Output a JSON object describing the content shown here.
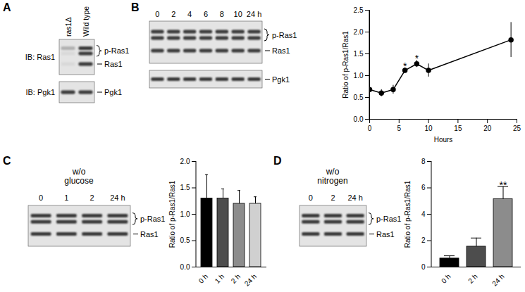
{
  "panels": [
    {
      "letter": "A",
      "blot": {
        "lanes": [
          "ras1Δ",
          "Wild type"
        ],
        "rows": [
          {
            "antibody": "IB: Ras1",
            "bands": [
              "p-Ras1",
              "Ras1"
            ]
          },
          {
            "antibody": "IB: Pgk1",
            "bands": [
              "Pgk1"
            ]
          }
        ]
      }
    },
    {
      "letter": "B",
      "blot": {
        "lanes": [
          "0",
          "2",
          "4",
          "6",
          "8",
          "10",
          "24 h"
        ],
        "rows": [
          {
            "bands": [
              "p-Ras1",
              "Ras1"
            ]
          },
          {
            "bands": [
              "Pgk1"
            ]
          }
        ]
      }
    },
    {
      "letter": "C",
      "blot": {
        "title": [
          "w/o",
          "glucose"
        ],
        "lanes": [
          "0",
          "1",
          "2",
          "24 h"
        ],
        "rows": [
          {
            "bands": [
              "p-Ras1",
              "Ras1"
            ]
          }
        ]
      }
    },
    {
      "letter": "D",
      "blot": {
        "title": [
          "w/o",
          "nitrogen"
        ],
        "lanes": [
          "0",
          "2",
          "24 h"
        ],
        "rows": [
          {
            "bands": [
              "p-Ras1",
              "Ras1"
            ]
          }
        ]
      }
    }
  ],
  "chart_data": [
    {
      "panel": "B",
      "type": "line",
      "x": [
        0,
        2,
        4,
        6,
        8,
        10,
        24
      ],
      "values": [
        0.68,
        0.6,
        0.68,
        1.12,
        1.27,
        1.12,
        1.82
      ],
      "errors": [
        0.12,
        0.08,
        0.1,
        0.06,
        0.08,
        0.15,
        0.4
      ],
      "color": "#000000",
      "marker": "circle",
      "xlabel": "Hours",
      "ylabel": "Ratio of p-Ras1/Ras1",
      "xlim": [
        0,
        25
      ],
      "xticks": [
        0,
        5,
        10,
        15,
        20,
        25
      ],
      "ylim": [
        0,
        2.5
      ],
      "yticks": [
        {
          "value": 0,
          "label": "0.0"
        },
        {
          "value": 0.5,
          "label": "0.5"
        },
        {
          "value": 1,
          "label": "1.0"
        },
        {
          "value": 1.5,
          "label": "1.5"
        },
        {
          "value": 2,
          "label": "2.0"
        },
        {
          "value": 2.5,
          "label": "2.5"
        }
      ],
      "annotations": [
        {
          "x": 6,
          "text": "*"
        },
        {
          "x": 8,
          "text": "*"
        }
      ]
    },
    {
      "panel": "C",
      "type": "bar",
      "categories": [
        "0 h",
        "1 h",
        "2 h",
        "24 h"
      ],
      "values": [
        1.3,
        1.3,
        1.2,
        1.2
      ],
      "errors": [
        0.45,
        0.18,
        0.25,
        0.13
      ],
      "colors": [
        "#000000",
        "#4d4d4d",
        "#8c8c8c",
        "#d0d0d0"
      ],
      "ylabel": "Ratio of p-Ras1/Ras1",
      "ylim": [
        0,
        2
      ],
      "yticks": [
        {
          "value": 0,
          "label": "0.0"
        },
        {
          "value": 0.5,
          "label": "0.5"
        },
        {
          "value": 1,
          "label": "1.0"
        },
        {
          "value": 1.5,
          "label": "1.5"
        },
        {
          "value": 2,
          "label": "2.0"
        }
      ]
    },
    {
      "panel": "D",
      "type": "bar",
      "categories": [
        "0 h",
        "2 h",
        "24 h"
      ],
      "values": [
        0.65,
        1.55,
        5.15
      ],
      "errors": [
        0.2,
        0.65,
        0.95
      ],
      "colors": [
        "#000000",
        "#4d4d4d",
        "#8c8c8c"
      ],
      "ylabel": "Ratio of p-Ras1/Ras1",
      "ylim": [
        0,
        8
      ],
      "yticks": [
        0,
        2,
        4,
        6,
        8
      ],
      "annotations": [
        {
          "x": "24 h",
          "text": "**"
        }
      ]
    }
  ]
}
